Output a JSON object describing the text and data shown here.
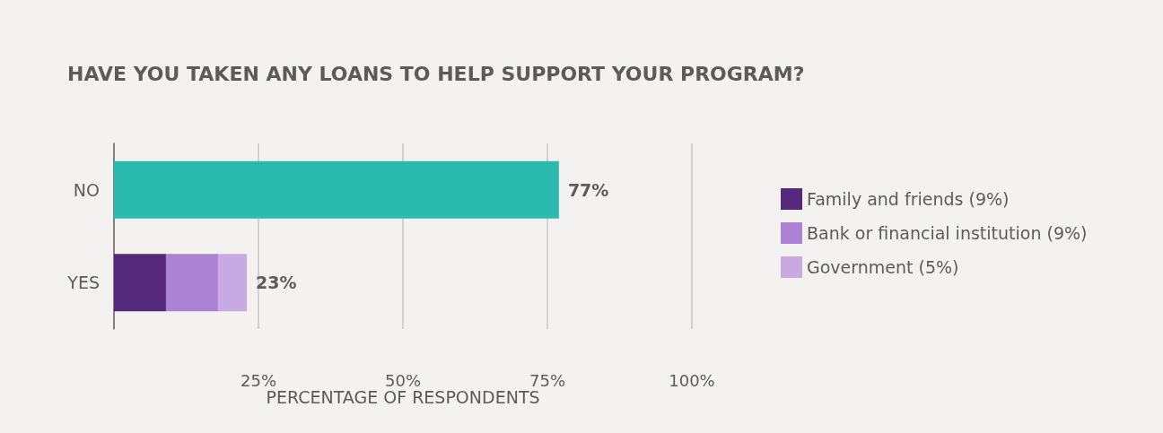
{
  "chart_data": {
    "type": "bar",
    "orientation": "horizontal",
    "stacked": true,
    "title": "HAVE YOU TAKEN ANY LOANS TO HELP SUPPORT YOUR PROGRAM?",
    "xlabel": "PERCENTAGE OF RESPONDENTS",
    "categories": [
      "NO",
      "YES"
    ],
    "series": [
      {
        "color": "#2bbaae",
        "values": [
          77,
          null
        ]
      },
      {
        "name": "Family and friends (9%)",
        "color": "#552a7c",
        "values": [
          null,
          9
        ]
      },
      {
        "name": "Bank or financial institution (9%)",
        "color": "#ab82d4",
        "values": [
          null,
          9
        ]
      },
      {
        "name": "Government (5%)",
        "color": "#c8aae3",
        "values": [
          null,
          5
        ]
      }
    ],
    "totals": [
      "77%",
      "23%"
    ],
    "xlim": [
      0,
      100
    ],
    "xticks": [
      {
        "value": 25,
        "label": "25%"
      },
      {
        "value": 50,
        "label": "50%"
      },
      {
        "value": 75,
        "label": "75%"
      },
      {
        "value": 100,
        "label": "100%"
      }
    ],
    "grid": "x",
    "legend": "right"
  }
}
